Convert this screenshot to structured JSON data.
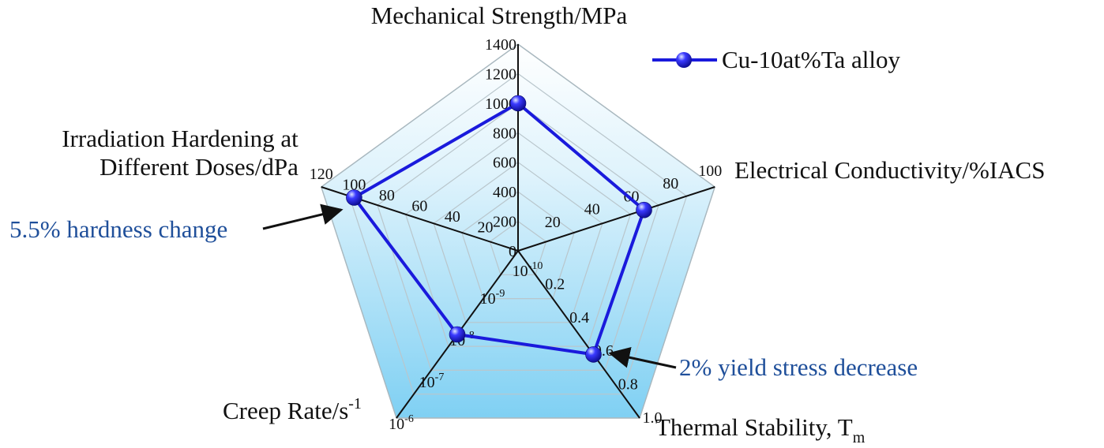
{
  "chart_data": {
    "type": "radar",
    "axes": [
      {
        "id": "strength",
        "title": "Mechanical Strength/MPa",
        "ticks": [
          "0",
          "200",
          "400",
          "600",
          "800",
          "1000",
          "1200",
          "1400"
        ],
        "range": [
          0,
          1400
        ],
        "scale": "linear"
      },
      {
        "id": "conductivity",
        "title": "Electrical Conductivity/%IACS",
        "ticks": [
          "20",
          "40",
          "60",
          "80",
          "100"
        ],
        "range": [
          0,
          100
        ],
        "scale": "linear"
      },
      {
        "id": "thermal",
        "title": "Thermal Stability, T",
        "title_sub": "m",
        "ticks": [
          "0.2",
          "0.4",
          "0.6",
          "0.8",
          "1.0"
        ],
        "range": [
          0,
          1.0
        ],
        "scale": "linear"
      },
      {
        "id": "creep",
        "title": "Creep Rate/s",
        "title_sup": "-1",
        "ticks": [
          {
            "base": "10",
            "exp": "-10"
          },
          {
            "base": "10",
            "exp": "-9"
          },
          {
            "base": "10",
            "exp": "-8"
          },
          {
            "base": "10",
            "exp": "-7"
          },
          {
            "base": "10",
            "exp": "-6"
          }
        ],
        "range": [
          1e-10,
          1e-06
        ],
        "scale": "log"
      },
      {
        "id": "irradiation",
        "title_lines": [
          "Irradiation Hardening at",
          "Different Doses/dPa"
        ],
        "ticks": [
          "20",
          "40",
          "60",
          "80",
          "100",
          "120"
        ],
        "range": [
          0,
          120
        ],
        "scale": "linear"
      }
    ],
    "series": [
      {
        "name": "Cu-10at%Ta alloy",
        "color": "#1a1adc",
        "values": {
          "strength": 1000,
          "conductivity": 64,
          "thermal": 0.62,
          "creep": 1e-08,
          "irradiation": 100
        }
      }
    ],
    "annotations": [
      {
        "text": "5.5% hardness change",
        "axis": "irradiation"
      },
      {
        "text": "2% yield stress decrease",
        "axis": "thermal"
      }
    ],
    "legend": {
      "position": "top-right"
    },
    "grid": true
  }
}
